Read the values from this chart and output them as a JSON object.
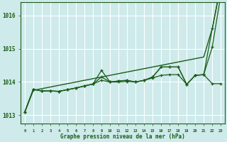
{
  "title": "Graphe pression niveau de la mer (hPa)",
  "background_color": "#ceeaea",
  "grid_color": "#ffffff",
  "text_color": "#1a5c1a",
  "x_values": [
    0,
    1,
    2,
    3,
    4,
    5,
    6,
    7,
    8,
    9,
    10,
    11,
    12,
    13,
    14,
    15,
    16,
    17,
    18,
    19,
    20,
    21,
    22,
    23
  ],
  "line_straight": [
    1013.1,
    1013.75,
    1013.8,
    1013.85,
    1013.9,
    1013.95,
    1014.0,
    1014.05,
    1014.1,
    1014.15,
    1014.2,
    1014.25,
    1014.3,
    1014.35,
    1014.4,
    1014.45,
    1014.5,
    1014.55,
    1014.6,
    1014.65,
    1014.7,
    1014.75,
    1015.6,
    1016.9
  ],
  "line_a": [
    1013.1,
    1013.78,
    1013.73,
    1013.73,
    1013.72,
    1013.77,
    1013.82,
    1013.88,
    1013.94,
    1014.35,
    1014.0,
    1014.03,
    1014.05,
    1014.0,
    1014.05,
    1014.15,
    1014.45,
    1014.45,
    1014.45,
    1013.93,
    1014.2,
    1014.22,
    1015.6,
    1016.9
  ],
  "line_b": [
    1013.1,
    1013.78,
    1013.73,
    1013.73,
    1013.72,
    1013.77,
    1013.82,
    1013.88,
    1013.94,
    1014.15,
    1014.0,
    1014.03,
    1014.05,
    1014.0,
    1014.05,
    1014.15,
    1014.45,
    1014.45,
    1014.45,
    1013.93,
    1014.2,
    1014.22,
    1015.05,
    1016.6
  ],
  "line_c": [
    1013.1,
    1013.78,
    1013.73,
    1013.73,
    1013.72,
    1013.77,
    1013.82,
    1013.88,
    1013.94,
    1014.05,
    1014.0,
    1014.0,
    1014.02,
    1014.0,
    1014.05,
    1014.12,
    1014.2,
    1014.22,
    1014.22,
    1013.93,
    1014.2,
    1014.22,
    1013.95,
    1013.95
  ],
  "ylim": [
    1012.75,
    1016.4
  ],
  "yticks": [
    1013,
    1014,
    1015,
    1016
  ],
  "line_color": "#1a5c1a",
  "line_color2": "#2d7a2d"
}
